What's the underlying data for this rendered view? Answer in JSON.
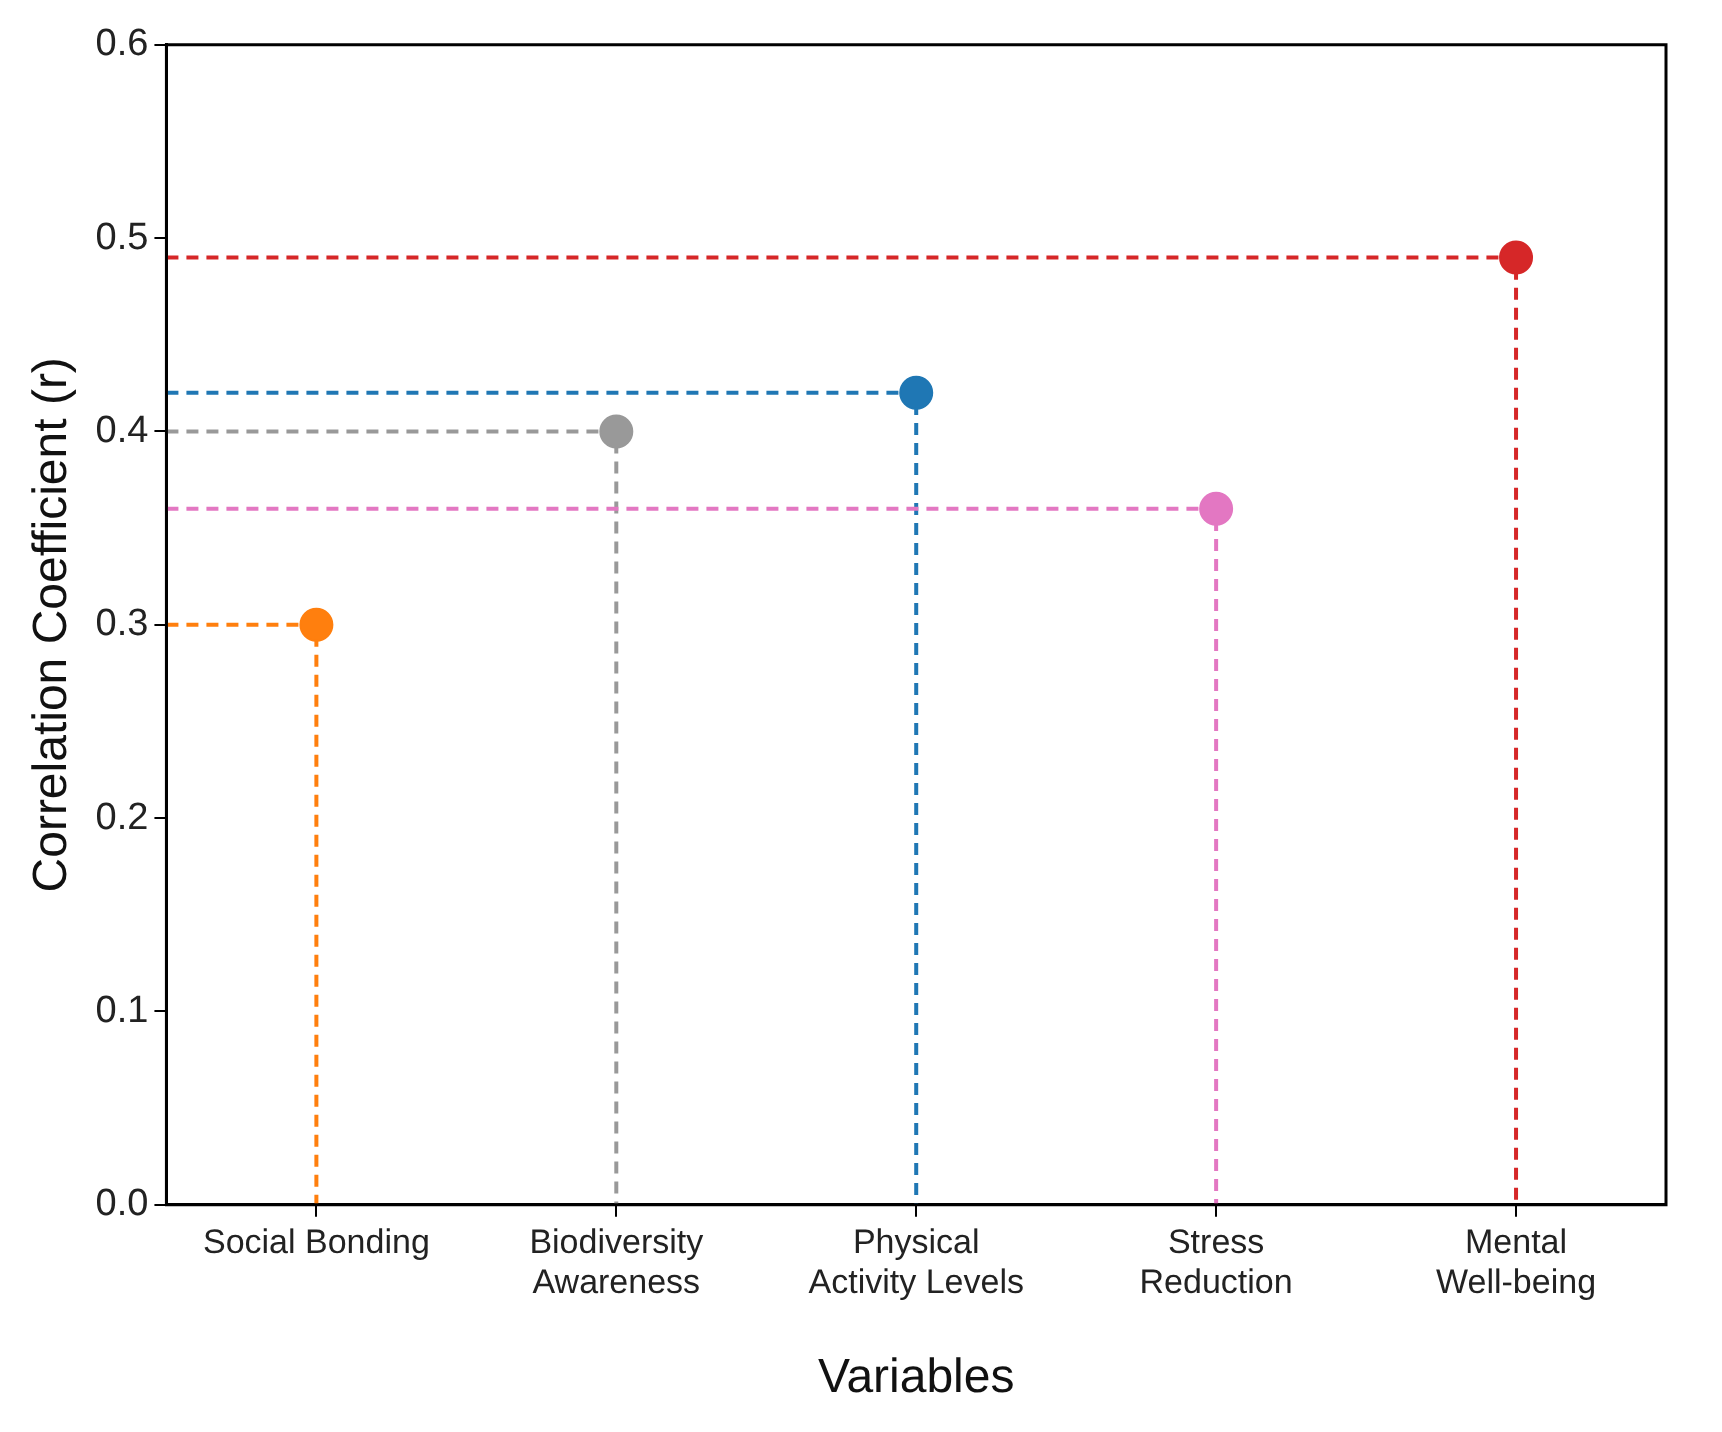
{
  "chart_data": {
    "type": "lollipop",
    "xlabel": "Variables",
    "ylabel": "Correlation Coefficient (r)",
    "categories": [
      "Social Bonding",
      "Biodiversity Awareness",
      "Physical Activity Levels",
      "Stress Reduction",
      "Mental Well-being"
    ],
    "values": [
      0.3,
      0.4,
      0.42,
      0.36,
      0.49
    ],
    "colors": [
      "#ff7f0e",
      "#999999",
      "#1f77b4",
      "#e377c2",
      "#d62728"
    ],
    "ylim": [
      0,
      0.6
    ],
    "yticks": [
      {
        "value": 0,
        "label": "0.0"
      },
      {
        "value": 0.1,
        "label": "0.1"
      },
      {
        "value": 0.2,
        "label": "0.2"
      },
      {
        "value": 0.3,
        "label": "0.3"
      },
      {
        "value": 0.4,
        "label": "0.4"
      },
      {
        "value": 0.5,
        "label": "0.5"
      },
      {
        "value": 0.6,
        "label": "0.6"
      }
    ],
    "grid": false,
    "legend": false,
    "marker": "circle",
    "line_style": "dashed"
  }
}
